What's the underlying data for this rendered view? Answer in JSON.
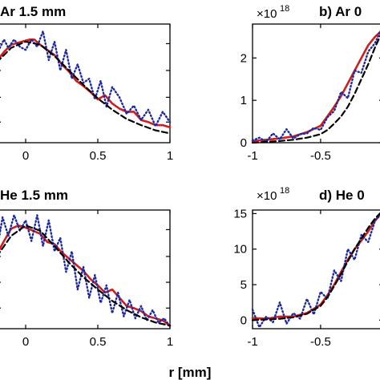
{
  "figure": {
    "xlabel": "r [mm]"
  },
  "colors": {
    "simulation": "#cc1f1f",
    "measurement": "#1f2a9e",
    "fit": "#000000",
    "axes": "#000000"
  },
  "chart_data": [
    {
      "panel_id": "a",
      "type": "line",
      "title": "Ar 1.5 mm",
      "xlim": [
        -0.2,
        1
      ],
      "ylim": [
        0,
        1.15
      ],
      "xticks": [
        0,
        0.5,
        1
      ],
      "xtick_labels": [
        "0",
        "0.5",
        "1"
      ],
      "yticks": [
        0.2,
        0.44,
        0.7,
        0.96
      ],
      "ytick_labels": [],
      "multiplier_label": "",
      "series": [
        {
          "style": "solid",
          "color": "#cc1f1f",
          "x": [
            -0.2,
            -0.15,
            -0.1,
            -0.05,
            0,
            0.03,
            0.06,
            0.1,
            0.15,
            0.2,
            0.25,
            0.3,
            0.35,
            0.4,
            0.45,
            0.5,
            0.55,
            0.6,
            0.65,
            0.7,
            0.75,
            0.8,
            0.85,
            0.9,
            0.95,
            1.0
          ],
          "y": [
            0.79,
            0.88,
            0.95,
            0.97,
            0.99,
            1.0,
            1.0,
            0.95,
            0.9,
            0.85,
            0.76,
            0.69,
            0.6,
            0.55,
            0.49,
            0.42,
            0.46,
            0.38,
            0.33,
            0.3,
            0.3,
            0.22,
            0.2,
            0.17,
            0.17,
            0.15
          ]
        },
        {
          "style": "dotted",
          "color": "#1f2a9e",
          "x": [
            -0.2,
            -0.15,
            -0.12,
            -0.08,
            -0.04,
            0,
            0.04,
            0.08,
            0.12,
            0.16,
            0.2,
            0.24,
            0.28,
            0.32,
            0.36,
            0.4,
            0.44,
            0.48,
            0.52,
            0.56,
            0.6,
            0.65,
            0.7,
            0.75,
            0.8,
            0.85,
            0.9,
            0.95,
            1.0
          ],
          "y": [
            0.86,
            1.0,
            0.92,
            1.0,
            0.93,
            0.9,
            1.0,
            0.93,
            1.08,
            0.8,
            0.98,
            0.7,
            0.9,
            0.62,
            0.76,
            0.58,
            0.62,
            0.42,
            0.6,
            0.35,
            0.54,
            0.44,
            0.28,
            0.36,
            0.22,
            0.32,
            0.16,
            0.3,
            0.2
          ]
        },
        {
          "style": "dashed",
          "color": "#000000",
          "x": [
            -0.2,
            -0.1,
            0,
            0.1,
            0.2,
            0.3,
            0.4,
            0.5,
            0.6,
            0.7,
            0.8,
            0.9,
            1.0
          ],
          "y": [
            0.78,
            0.92,
            0.98,
            0.95,
            0.84,
            0.7,
            0.56,
            0.43,
            0.32,
            0.23,
            0.17,
            0.12,
            0.09
          ]
        }
      ]
    },
    {
      "panel_id": "b",
      "type": "line",
      "title": "b) Ar 0",
      "xlim": [
        -1,
        -0.04
      ],
      "ylim": [
        0,
        2.8
      ],
      "xticks": [
        -1,
        -0.5
      ],
      "xtick_labels": [
        "-1",
        "-0.5"
      ],
      "yticks": [
        0,
        1,
        2
      ],
      "ytick_labels": [
        "0",
        "1",
        "2"
      ],
      "multiplier_label": "×10",
      "multiplier_exp": "18",
      "series": [
        {
          "style": "solid",
          "color": "#cc1f1f",
          "x": [
            -1,
            -0.9,
            -0.8,
            -0.7,
            -0.6,
            -0.5,
            -0.45,
            -0.4,
            -0.35,
            -0.3,
            -0.25,
            -0.2,
            -0.15,
            -0.1,
            -0.05
          ],
          "y": [
            0.04,
            0.07,
            0.1,
            0.15,
            0.25,
            0.4,
            0.62,
            0.85,
            1.1,
            1.4,
            1.7,
            2.0,
            2.3,
            2.5,
            2.65
          ]
        },
        {
          "style": "dotted",
          "color": "#1f2a9e",
          "x": [
            -1,
            -0.95,
            -0.9,
            -0.85,
            -0.8,
            -0.75,
            -0.7,
            -0.65,
            -0.6,
            -0.55,
            -0.5,
            -0.45,
            -0.4,
            -0.35,
            -0.3,
            -0.25,
            -0.2,
            -0.15,
            -0.1,
            -0.05
          ],
          "y": [
            0.05,
            0.12,
            0.02,
            0.22,
            0.08,
            0.32,
            0.1,
            0.2,
            0.22,
            0.35,
            0.3,
            0.6,
            0.75,
            1.2,
            1.05,
            1.7,
            1.65,
            2.15,
            2.35,
            2.7
          ]
        },
        {
          "style": "dashed",
          "color": "#000000",
          "x": [
            -1,
            -0.9,
            -0.8,
            -0.7,
            -0.6,
            -0.5,
            -0.45,
            -0.4,
            -0.35,
            -0.3,
            -0.25,
            -0.2,
            -0.15,
            -0.1,
            -0.05
          ],
          "y": [
            0.0,
            0.02,
            0.04,
            0.07,
            0.12,
            0.2,
            0.3,
            0.45,
            0.62,
            0.85,
            1.15,
            1.5,
            1.85,
            2.25,
            2.6
          ]
        }
      ]
    },
    {
      "panel_id": "c",
      "type": "line",
      "title": "He 1.5 mm",
      "xlim": [
        -0.2,
        1
      ],
      "ylim": [
        0,
        1.15
      ],
      "xticks": [
        0,
        0.5,
        1
      ],
      "xtick_labels": [
        "0",
        "0.5",
        "1"
      ],
      "yticks": [
        0.2,
        0.45,
        0.7,
        0.96
      ],
      "ytick_labels": [],
      "multiplier_label": "",
      "series": [
        {
          "style": "solid",
          "color": "#cc1f1f",
          "x": [
            -0.2,
            -0.15,
            -0.1,
            -0.05,
            0,
            0.05,
            0.1,
            0.15,
            0.2,
            0.25,
            0.3,
            0.35,
            0.4,
            0.45,
            0.5,
            0.55,
            0.6,
            0.65,
            0.7,
            0.75,
            0.8,
            0.85,
            0.9,
            0.95,
            1.0
          ],
          "y": [
            0.72,
            0.85,
            0.97,
            1.0,
            0.98,
            0.95,
            0.92,
            0.84,
            0.82,
            0.74,
            0.68,
            0.62,
            0.56,
            0.48,
            0.42,
            0.35,
            0.38,
            0.3,
            0.22,
            0.2,
            0.17,
            0.12,
            0.1,
            0.08,
            0.03
          ]
        },
        {
          "style": "dotted",
          "color": "#1f2a9e",
          "x": [
            -0.2,
            -0.16,
            -0.12,
            -0.08,
            -0.04,
            0,
            0.04,
            0.08,
            0.12,
            0.16,
            0.2,
            0.24,
            0.28,
            0.32,
            0.36,
            0.4,
            0.44,
            0.48,
            0.52,
            0.56,
            0.6,
            0.64,
            0.68,
            0.72,
            0.76,
            0.8,
            0.84,
            0.88,
            0.92,
            0.96,
            1.0
          ],
          "y": [
            0.75,
            1.08,
            0.9,
            1.1,
            0.95,
            1.05,
            0.85,
            1.1,
            0.8,
            1.05,
            0.75,
            0.88,
            0.55,
            0.75,
            0.38,
            0.6,
            0.3,
            0.52,
            0.25,
            0.42,
            0.15,
            0.35,
            0.12,
            0.28,
            0.1,
            0.22,
            0.08,
            0.18,
            0.06,
            0.1,
            0.02
          ]
        },
        {
          "style": "dashed",
          "color": "#000000",
          "x": [
            -0.2,
            -0.1,
            0,
            0.1,
            0.2,
            0.3,
            0.4,
            0.5,
            0.6,
            0.7,
            0.8,
            0.9,
            1.0
          ],
          "y": [
            0.7,
            0.9,
            1.0,
            0.95,
            0.8,
            0.64,
            0.5,
            0.38,
            0.27,
            0.18,
            0.11,
            0.06,
            0.03
          ]
        }
      ]
    },
    {
      "panel_id": "d",
      "type": "line",
      "title": "d) He 0",
      "xlim": [
        -1,
        -0.04
      ],
      "ylim": [
        -1.2,
        15.5
      ],
      "xticks": [
        -1,
        -0.5
      ],
      "xtick_labels": [
        "-1",
        "-0.5"
      ],
      "yticks": [
        0,
        5,
        10,
        15
      ],
      "ytick_labels": [
        "0",
        "5",
        "10",
        "15"
      ],
      "multiplier_label": "×10",
      "multiplier_exp": "18",
      "series": [
        {
          "style": "solid",
          "color": "#cc1f1f",
          "x": [
            -1,
            -0.9,
            -0.8,
            -0.7,
            -0.6,
            -0.5,
            -0.45,
            -0.4,
            -0.35,
            -0.3,
            -0.25,
            -0.2,
            -0.15,
            -0.1,
            -0.05
          ],
          "y": [
            0.3,
            0.2,
            0.5,
            0.5,
            1.0,
            2.2,
            3.5,
            5.0,
            6.8,
            8.5,
            10.0,
            11.2,
            12.5,
            14.0,
            15.2
          ]
        },
        {
          "style": "dotted",
          "color": "#1f2a9e",
          "x": [
            -1,
            -0.95,
            -0.9,
            -0.85,
            -0.8,
            -0.75,
            -0.7,
            -0.65,
            -0.6,
            -0.55,
            -0.5,
            -0.45,
            -0.4,
            -0.35,
            -0.3,
            -0.25,
            -0.2,
            -0.15,
            -0.1,
            -0.05
          ],
          "y": [
            1.5,
            -1.0,
            0.5,
            -0.3,
            2.5,
            -0.5,
            1.0,
            0.2,
            3.0,
            0.8,
            4.0,
            3.0,
            7.0,
            5.5,
            10.0,
            8.5,
            12.0,
            11.0,
            14.0,
            15.0
          ]
        },
        {
          "style": "dashed",
          "color": "#000000",
          "x": [
            -1,
            -0.9,
            -0.8,
            -0.7,
            -0.6,
            -0.5,
            -0.45,
            -0.4,
            -0.35,
            -0.3,
            -0.25,
            -0.2,
            -0.15,
            -0.1,
            -0.05
          ],
          "y": [
            0.0,
            0.1,
            0.2,
            0.4,
            0.9,
            2.0,
            3.2,
            4.8,
            6.5,
            8.3,
            10.0,
            11.5,
            13.0,
            14.3,
            15.3
          ]
        }
      ]
    }
  ]
}
